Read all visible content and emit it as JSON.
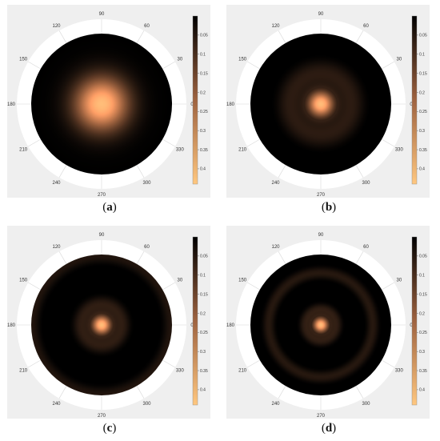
{
  "panels": [
    {
      "caption_open": "(",
      "caption_letter": "a",
      "caption_close": ")",
      "rings": 0,
      "core": 0.55,
      "core_peak": 0.42
    },
    {
      "caption_open": "(",
      "caption_letter": "b",
      "caption_close": ")",
      "rings": 1,
      "core": 0.26,
      "core_peak": 0.42
    },
    {
      "caption_open": "(",
      "caption_letter": "c",
      "caption_close": ")",
      "rings": 2,
      "core": 0.19,
      "core_peak": 0.42
    },
    {
      "caption_open": "(",
      "caption_letter": "d",
      "caption_close": ")",
      "rings": 3,
      "core": 0.15,
      "core_peak": 0.42
    }
  ],
  "angle_labels": [
    "0",
    "30",
    "60",
    "90",
    "120",
    "150",
    "180",
    "210",
    "240",
    "270",
    "300",
    "330"
  ],
  "colorbar_labels": [
    "0.05",
    "0.1",
    "0.15",
    "0.2",
    "0.25",
    "0.3",
    "0.35",
    "0.4"
  ],
  "colormap": {
    "name": "copper",
    "min": 0,
    "max": 0.44,
    "low_color": "#000000",
    "high_color": "#ffc77f"
  },
  "background": "#efefef"
}
